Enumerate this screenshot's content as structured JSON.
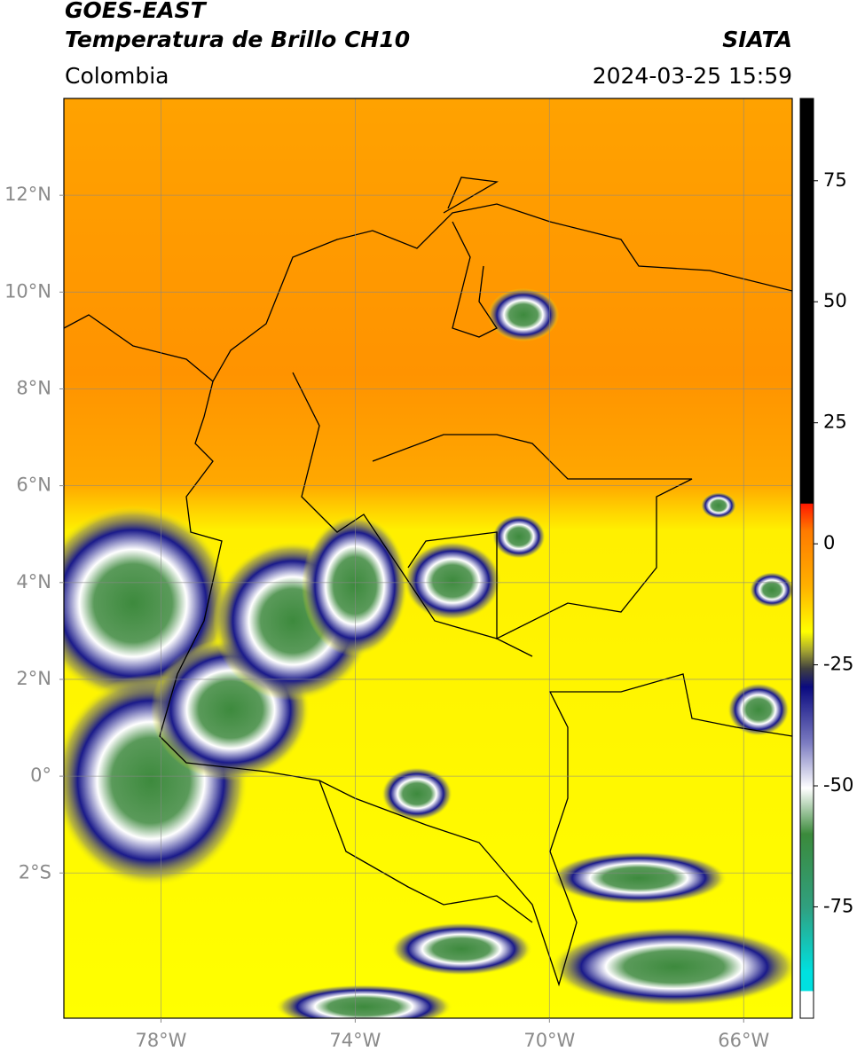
{
  "header": {
    "title": "GOES-EAST",
    "subtitle": "Temperatura de Brillo CH10",
    "region": "Colombia",
    "source": "SIATA",
    "datetime": "2024-03-25 15:59"
  },
  "chart_data": {
    "type": "map",
    "xlim": [
      -80,
      -65
    ],
    "ylim": [
      -5,
      14
    ],
    "xticks": [
      {
        "value": -78,
        "label": "78°W"
      },
      {
        "value": -74,
        "label": "74°W"
      },
      {
        "value": -70,
        "label": "70°W"
      },
      {
        "value": -66,
        "label": "66°W"
      }
    ],
    "yticks": [
      {
        "value": 12,
        "label": "12°N"
      },
      {
        "value": 10,
        "label": "10°N"
      },
      {
        "value": 8,
        "label": "8°N"
      },
      {
        "value": 6,
        "label": "6°N"
      },
      {
        "value": 4,
        "label": "4°N"
      },
      {
        "value": 2,
        "label": "2°N"
      },
      {
        "value": 0,
        "label": "0°"
      },
      {
        "value": -2,
        "label": "2°S"
      }
    ],
    "grid": true,
    "colorbar": {
      "lim": [
        -98,
        92
      ],
      "ticks": [
        75,
        50,
        25,
        0,
        -25,
        -50,
        -75
      ]
    }
  }
}
